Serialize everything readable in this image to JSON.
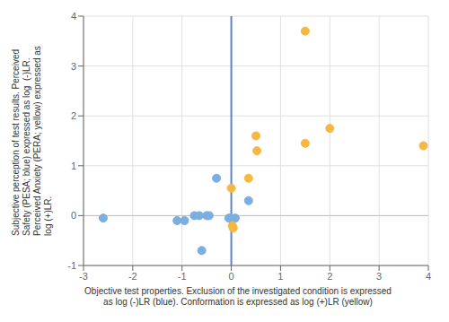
{
  "chart_data": {
    "type": "scatter",
    "xlabel": "Objective test properties. Exclusion of the investigated condition is expressed\nas log (-)LR (blue). Conformation is expressed as log (+)LR (yellow)",
    "ylabel": "Subjective perception of test results. Perceived\nSafety (PESA; blue) expressed as log  (-)LR.\nPerceived Anxiety (PERA; yellow) expressed as\nlog (+)LR.",
    "series": [
      {
        "color": "#7aafe0",
        "x": [
          -2.6,
          -1.1,
          -0.95,
          -0.75,
          -0.65,
          -0.5,
          -0.45,
          -0.3,
          -0.05,
          -0.02,
          0.08,
          0.35,
          -0.6
        ],
        "values": [
          -0.05,
          -0.1,
          -0.1,
          0.0,
          0.0,
          0.0,
          0.0,
          0.75,
          -0.05,
          -0.05,
          -0.05,
          0.3,
          -0.7
        ]
      },
      {
        "color": "#f5b942",
        "x": [
          0.0,
          0.02,
          0.04,
          0.35,
          0.5,
          0.52,
          1.5,
          1.5,
          2.0,
          3.9
        ],
        "values": [
          0.55,
          -0.2,
          -0.25,
          0.75,
          1.6,
          1.3,
          3.7,
          1.45,
          1.75,
          1.4
        ]
      }
    ],
    "xlim": [
      -3,
      4
    ],
    "ylim": [
      -1,
      4
    ],
    "xticks": [
      -3,
      -2,
      -1,
      0,
      1,
      2,
      3,
      4
    ],
    "yticks": [
      -1,
      0,
      1,
      2,
      3,
      4
    ],
    "reference_lines": [
      {
        "axis": "y",
        "value": 0,
        "color": "#c0c0c0"
      },
      {
        "axis": "x",
        "value": 0,
        "color": "#5b84c4"
      }
    ],
    "grid": true
  }
}
